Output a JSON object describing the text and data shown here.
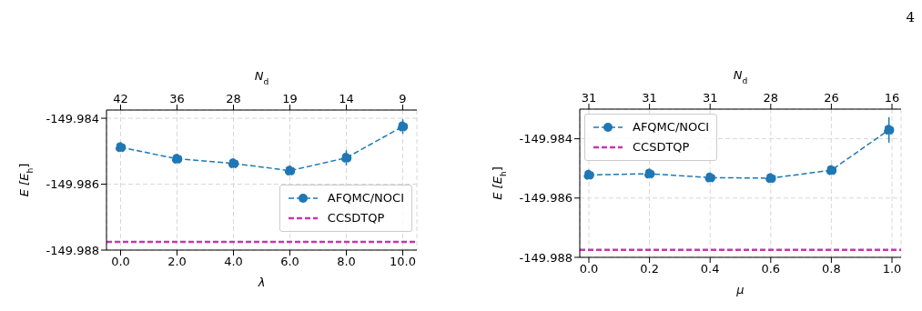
{
  "chart_data": [
    {
      "type": "line",
      "xlabel": "λ",
      "ylabel": "E [E$_{h}$]",
      "x2label": "N$_{d}$",
      "x": [
        0,
        2,
        4,
        6,
        8,
        10
      ],
      "series": [
        {
          "name": "AFQMC/NOCI",
          "color": "#1f77b4",
          "values": [
            -149.98488,
            -149.98523,
            -149.98537,
            -149.98559,
            -149.9852,
            -149.98425
          ],
          "errors": [
            0.0001,
            0.0001,
            0.0001,
            0.0001,
            0.00023,
            0.00022
          ]
        }
      ],
      "ref_lines": [
        {
          "axis": "y",
          "value": -149.98775,
          "label": "CCSDTQP",
          "color": "#c238b0",
          "line_style": "dashed"
        }
      ],
      "annotations": [
        "42",
        "36",
        "28",
        "19",
        "14",
        "9"
      ],
      "xlim": [
        -0.5,
        10.5
      ],
      "xticks": [
        {
          "value": 0,
          "label": "0.0"
        },
        {
          "value": 2,
          "label": "2.0"
        },
        {
          "value": 4,
          "label": "4.0"
        },
        {
          "value": 6,
          "label": "6.0"
        },
        {
          "value": 8,
          "label": "8.0"
        },
        {
          "value": 10,
          "label": "10.0"
        }
      ],
      "ylim": [
        -149.988,
        -149.98375
      ],
      "yticks": [
        -149.984,
        -149.986,
        -149.988
      ],
      "grid": true,
      "legend": "bottom right",
      "marker": "circle",
      "line_style": "dashed"
    },
    {
      "type": "line",
      "xlabel": "μ",
      "ylabel": "E [E$_{h}$]",
      "x2label": "N$_{d}$",
      "x": [
        0,
        0.2,
        0.4,
        0.6,
        0.8,
        0.99
      ],
      "series": [
        {
          "name": "AFQMC/NOCI",
          "color": "#1f77b4",
          "values": [
            -149.98522,
            -149.98518,
            -149.98531,
            -149.98533,
            -149.98506,
            -149.9837
          ],
          "errors": [
            0.0001,
            0.0001,
            0.0001,
            0.0001,
            0.0001,
            0.00043
          ]
        }
      ],
      "ref_lines": [
        {
          "axis": "y",
          "value": -149.98775,
          "label": "CCSDTQP",
          "color": "#c238b0",
          "line_style": "dashed"
        }
      ],
      "annotations": [
        "31",
        "31",
        "31",
        "28",
        "26",
        "16",
        "4"
      ],
      "xlim": [
        -0.03,
        1.03
      ],
      "xticks": [
        {
          "value": 0,
          "label": "0.0"
        },
        {
          "value": 0.2,
          "label": "0.2"
        },
        {
          "value": 0.4,
          "label": "0.4"
        },
        {
          "value": 0.6,
          "label": "0.6"
        },
        {
          "value": 0.8,
          "label": "0.8"
        },
        {
          "value": 1,
          "label": "1.0"
        }
      ],
      "ylim": [
        -149.988,
        -149.983
      ],
      "yticks": [
        -149.984,
        -149.986,
        -149.988
      ],
      "grid": true,
      "legend": "top left",
      "marker": "circle",
      "line_style": "dashed"
    }
  ]
}
